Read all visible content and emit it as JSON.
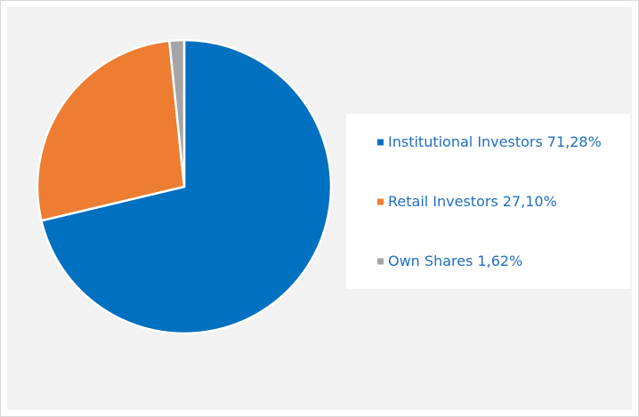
{
  "chart_data": {
    "type": "pie",
    "categories": [
      "Institutional Investors",
      "Retail Investors",
      "Own Shares"
    ],
    "values": [
      71.28,
      27.1,
      1.62
    ],
    "value_labels": [
      "71,28%",
      "27,10%",
      "1,62%"
    ],
    "colors": [
      "#0070c0",
      "#ed7d31",
      "#a5a5a5"
    ],
    "legend": "right"
  }
}
